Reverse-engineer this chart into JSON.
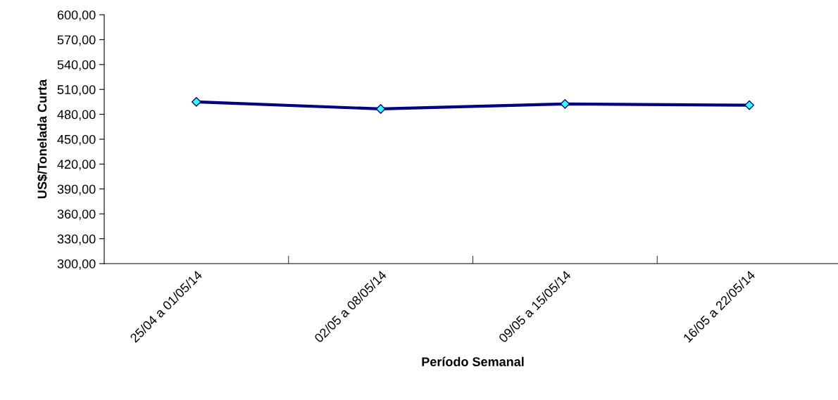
{
  "chart_data": {
    "type": "line",
    "xlabel": "Período Semanal",
    "ylabel": "US$/Tonelada Curta",
    "categories": [
      "25/04 a 01/05/14",
      "02/05 a 08/05/14",
      "09/05 a 15/05/14",
      "16/05 a 22/05/14"
    ],
    "series": [
      {
        "color": "#000080",
        "colors": [
          "#33ffff",
          "#33ffff",
          "#33ffff",
          "#33ffff"
        ],
        "values": [
          495.0,
          486.5,
          492.5,
          491.0
        ]
      }
    ],
    "ylim": [
      300,
      600
    ],
    "yticks": [
      {
        "value": 300,
        "label": "300,00"
      },
      {
        "value": 330,
        "label": "330,00"
      },
      {
        "value": 360,
        "label": "360,00"
      },
      {
        "value": 390,
        "label": "390,00"
      },
      {
        "value": 420,
        "label": "420,00"
      },
      {
        "value": 450,
        "label": "450,00"
      },
      {
        "value": 480,
        "label": "480,00"
      },
      {
        "value": 510,
        "label": "510,00"
      },
      {
        "value": 540,
        "label": "540,00"
      },
      {
        "value": 570,
        "label": "570,00"
      },
      {
        "value": 600,
        "label": "600,00"
      }
    ],
    "marker": "diamond",
    "line_style": "solid",
    "grid": false,
    "legend": false
  }
}
